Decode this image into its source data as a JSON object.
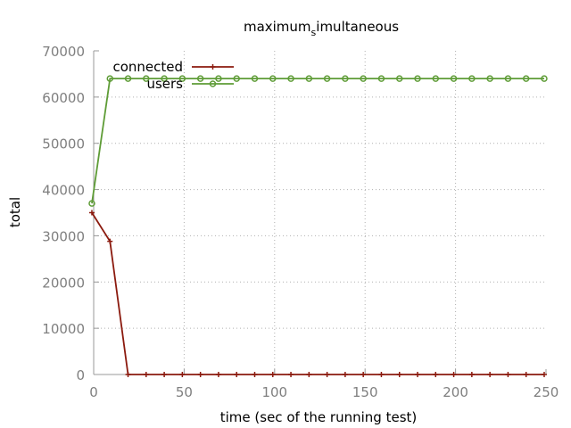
{
  "chart_data": {
    "type": "line",
    "title_main": "maximum",
    "title_sub": "s",
    "title_rest": "imultaneous",
    "xlabel": "time (sec of the running test)",
    "ylabel": "total",
    "xlim": [
      0,
      250
    ],
    "ylim": [
      0,
      70000
    ],
    "xticks": [
      0,
      50,
      100,
      150,
      200,
      250
    ],
    "yticks": [
      0,
      10000,
      20000,
      30000,
      40000,
      50000,
      60000,
      70000
    ],
    "grid": true,
    "legend_position": "top-left",
    "x": [
      -1,
      9,
      19,
      29,
      39,
      49,
      59,
      69,
      79,
      89,
      99,
      109,
      119,
      129,
      139,
      149,
      159,
      169,
      179,
      189,
      199,
      209,
      219,
      229,
      239,
      249
    ],
    "series": [
      {
        "name": "connected",
        "color": "#8b1a0e",
        "marker": "plus",
        "values": [
          35000,
          28800,
          0,
          0,
          0,
          0,
          0,
          0,
          0,
          0,
          0,
          0,
          0,
          0,
          0,
          0,
          0,
          0,
          0,
          0,
          0,
          0,
          0,
          0,
          0,
          0
        ]
      },
      {
        "name": "users",
        "color": "#5e9c36",
        "marker": "circle",
        "values": [
          37000,
          64000,
          64000,
          64000,
          64000,
          64000,
          64000,
          64000,
          64000,
          64000,
          64000,
          64000,
          64000,
          64000,
          64000,
          64000,
          64000,
          64000,
          64000,
          64000,
          64000,
          64000,
          64000,
          64000,
          64000,
          64000
        ]
      }
    ]
  }
}
